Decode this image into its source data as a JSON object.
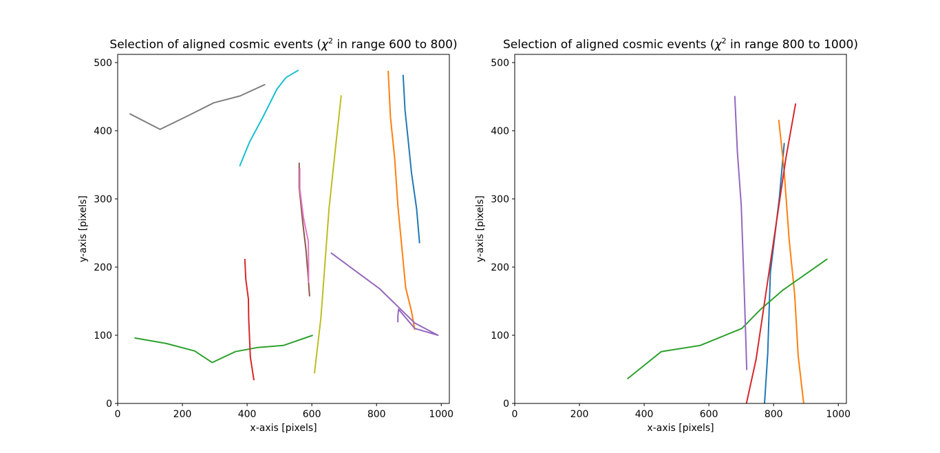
{
  "chart_data": [
    {
      "type": "line",
      "title_prefix": "Selection of aligned cosmic events (",
      "title_chi": "χ",
      "title_sup": "2",
      "title_suffix": " in range 600 to 800)",
      "xlabel": "x-axis [pixels]",
      "ylabel": "y-axis [pixels]",
      "xlim": [
        0,
        1025
      ],
      "ylim": [
        0,
        512
      ],
      "xticks": [
        "0",
        "200",
        "400",
        "600",
        "800",
        "1000"
      ],
      "yticks": [
        "0",
        "100",
        "200",
        "300",
        "400",
        "500"
      ],
      "series": [
        {
          "color": "#1f77b4",
          "x": [
            882,
            888,
            898,
            908,
            924,
            933
          ],
          "y": [
            482,
            430,
            385,
            338,
            285,
            235
          ]
        },
        {
          "color": "#ff7f0e",
          "x": [
            836,
            843,
            856,
            866,
            890,
            908,
            918
          ],
          "y": [
            488,
            420,
            360,
            290,
            170,
            135,
            108
          ]
        },
        {
          "color": "#2ca02c",
          "x": [
            52,
            150,
            238,
            292,
            364,
            432,
            512,
            603
          ],
          "y": [
            96,
            88,
            77,
            60,
            76,
            82,
            85,
            100
          ]
        },
        {
          "color": "#d62728",
          "x": [
            393,
            396,
            404,
            405,
            410,
            421
          ],
          "y": [
            212,
            182,
            153,
            125,
            68,
            34
          ]
        },
        {
          "color": "#9467bd",
          "x": [
            659,
            810,
            918,
            990,
            918,
            868,
            866,
            866
          ],
          "y": [
            221,
            168,
            118,
            100,
            110,
            138,
            128,
            119
          ]
        },
        {
          "color": "#8c564b",
          "x": [
            561,
            561,
            572,
            582,
            588,
            593
          ],
          "y": [
            353,
            317,
            265,
            225,
            190,
            157
          ]
        },
        {
          "color": "#e377c2",
          "x": [
            563,
            563,
            574,
            589,
            590,
            590
          ],
          "y": [
            345,
            315,
            273,
            238,
            210,
            177
          ]
        },
        {
          "color": "#7f7f7f",
          "x": [
            37,
            131,
            213,
            297,
            378,
            456
          ],
          "y": [
            425,
            402,
            421,
            441,
            451,
            468
          ]
        },
        {
          "color": "#bcbd22",
          "x": [
            608,
            628,
            653,
            672,
            691
          ],
          "y": [
            44,
            125,
            285,
            370,
            452
          ]
        },
        {
          "color": "#17becf",
          "x": [
            377,
            408,
            450,
            492,
            520,
            559
          ],
          "y": [
            348,
            384,
            421,
            461,
            478,
            489
          ]
        }
      ]
    },
    {
      "type": "line",
      "title_prefix": "Selection of aligned cosmic events (",
      "title_chi": "χ",
      "title_sup": "2",
      "title_suffix": " in range 800 to 1000)",
      "xlabel": "x-axis [pixels]",
      "ylabel": "y-axis [pixels]",
      "xlim": [
        0,
        1025
      ],
      "ylim": [
        0,
        512
      ],
      "xticks": [
        "0",
        "200",
        "400",
        "600",
        "800",
        "1000"
      ],
      "yticks": [
        "0",
        "100",
        "200",
        "300",
        "400",
        "500"
      ],
      "series": [
        {
          "color": "#1f77b4",
          "x": [
            772,
            782,
            790,
            807,
            818,
            826,
            833
          ],
          "y": [
            0,
            74,
            192,
            259,
            303,
            345,
            382
          ]
        },
        {
          "color": "#ff7f0e",
          "x": [
            816,
            832,
            848,
            865,
            876,
            893
          ],
          "y": [
            416,
            345,
            240,
            160,
            70,
            0
          ]
        },
        {
          "color": "#2ca02c",
          "x": [
            348,
            453,
            573,
            702,
            760,
            828,
            966
          ],
          "y": [
            36,
            76,
            85,
            110,
            138,
            166,
            212
          ]
        },
        {
          "color": "#d62728",
          "x": [
            716,
            746,
            788,
            838,
            868
          ],
          "y": [
            0,
            65,
            200,
            360,
            440
          ]
        },
        {
          "color": "#9467bd",
          "x": [
            680,
            688,
            700,
            709,
            717
          ],
          "y": [
            451,
            370,
            290,
            170,
            49
          ]
        }
      ]
    }
  ]
}
